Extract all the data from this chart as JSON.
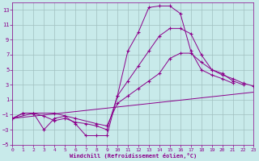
{
  "title": "",
  "xlabel": "Windchill (Refroidissement éolien,°C)",
  "background_color": "#c8eaea",
  "grid_color": "#b0c8c8",
  "line_color": "#8b008b",
  "ylim": [
    -5,
    14
  ],
  "xlim": [
    0,
    23
  ],
  "yticks": [
    -5,
    -3,
    -1,
    1,
    3,
    5,
    7,
    9,
    11,
    13
  ],
  "xticks": [
    0,
    1,
    2,
    3,
    4,
    5,
    6,
    7,
    8,
    9,
    10,
    11,
    12,
    13,
    14,
    15,
    16,
    17,
    18,
    19,
    20,
    21,
    22,
    23
  ],
  "series": [
    {
      "x": [
        0,
        1,
        2,
        3,
        4,
        5,
        6,
        7,
        8,
        9,
        10,
        11,
        12,
        13,
        14,
        15,
        16,
        17,
        18,
        19,
        20,
        21,
        22,
        23
      ],
      "y": [
        -1.5,
        -0.8,
        -0.8,
        -3.0,
        -1.5,
        -1.2,
        -2.2,
        -3.8,
        -3.8,
        -3.8,
        1.5,
        7.5,
        10.0,
        13.3,
        13.5,
        13.5,
        12.5,
        7.5,
        5.0,
        4.3,
        3.8,
        3.2,
        null,
        null
      ],
      "marker": true
    },
    {
      "x": [
        0,
        1,
        2,
        3,
        4,
        5,
        6,
        7,
        8,
        9,
        10,
        11,
        12,
        13,
        14,
        15,
        16,
        17,
        18,
        19,
        20,
        21,
        22,
        23
      ],
      "y": [
        -1.5,
        -0.8,
        -0.8,
        -1.2,
        -1.8,
        -1.5,
        -2.0,
        -2.2,
        -2.5,
        -3.0,
        1.5,
        3.5,
        5.5,
        7.5,
        9.5,
        10.5,
        10.5,
        9.8,
        7.0,
        5.0,
        4.5,
        3.5,
        3.0,
        null
      ],
      "marker": true
    },
    {
      "x": [
        0,
        2,
        4,
        6,
        8,
        9,
        10,
        11,
        12,
        13,
        14,
        15,
        16,
        17,
        18,
        19,
        20,
        21,
        22,
        23
      ],
      "y": [
        -1.5,
        -0.8,
        -0.8,
        -1.5,
        -2.2,
        -2.5,
        0.5,
        1.5,
        2.5,
        3.5,
        4.5,
        6.5,
        7.2,
        7.2,
        6.0,
        5.0,
        4.3,
        3.8,
        3.2,
        2.8
      ],
      "marker": true
    },
    {
      "x": [
        0,
        23
      ],
      "y": [
        -1.5,
        2.0
      ],
      "marker": false
    }
  ]
}
